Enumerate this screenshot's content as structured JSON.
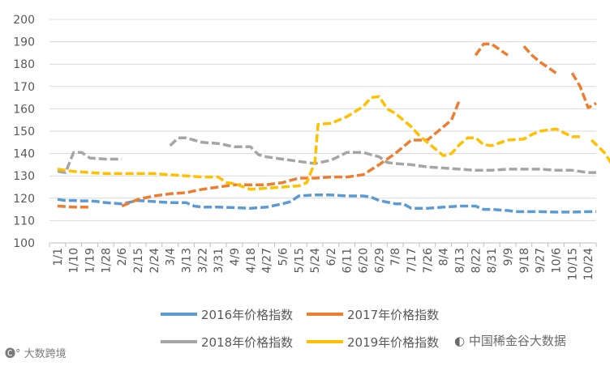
{
  "chart_data": {
    "type": "line",
    "title": "",
    "xlabel": "",
    "ylabel": "",
    "ylim": [
      100,
      200
    ],
    "yticks": [
      100,
      110,
      120,
      130,
      140,
      150,
      160,
      170,
      180,
      190,
      200
    ],
    "x_tick_labels": [
      "1/1",
      "1/10",
      "1/19",
      "1/28",
      "2/6",
      "2/15",
      "2/24",
      "3/4",
      "3/13",
      "3/22",
      "3/31",
      "4/9",
      "4/18",
      "4/27",
      "5/6",
      "5/15",
      "5/24",
      "6/2",
      "6/11",
      "6/20",
      "6/29",
      "7/8",
      "7/17",
      "7/26",
      "8/4",
      "8/13",
      "8/22",
      "8/31",
      "9/9",
      "9/18",
      "9/27",
      "10/6",
      "10/15",
      "10/24"
    ],
    "grid": "horizontal",
    "legend_position": "bottom",
    "line_style": "dashed",
    "series": [
      {
        "name": "2016年价格指数",
        "color": "#5B9BD5",
        "values": [
          [
            0,
            119.5
          ],
          [
            0.5,
            119.0
          ],
          [
            1,
            119.0
          ],
          [
            1.5,
            118.8
          ],
          [
            2,
            118.8
          ],
          [
            2.5,
            118.5
          ],
          [
            3,
            118.0
          ],
          [
            4,
            117.5
          ],
          [
            5,
            119.0
          ],
          [
            6,
            118.5
          ],
          [
            7,
            118.0
          ],
          [
            8,
            118.0
          ],
          [
            8.5,
            116.5
          ],
          [
            9,
            116.0
          ],
          [
            10,
            116.0
          ],
          [
            11,
            115.8
          ],
          [
            12,
            115.5
          ],
          [
            13,
            116.0
          ],
          [
            14,
            117.5
          ],
          [
            14.5,
            118.5
          ],
          [
            15,
            121.0
          ],
          [
            16,
            121.5
          ],
          [
            17,
            121.5
          ],
          [
            18,
            121.0
          ],
          [
            19,
            121.0
          ],
          [
            19.5,
            120.5
          ],
          [
            20,
            119.0
          ],
          [
            21,
            117.5
          ],
          [
            21.5,
            117.5
          ],
          [
            22,
            115.5
          ],
          [
            23,
            115.5
          ],
          [
            24,
            116.0
          ],
          [
            25,
            116.5
          ],
          [
            26,
            116.5
          ],
          [
            26.5,
            115.0
          ],
          [
            27,
            115.0
          ],
          [
            28,
            114.5
          ],
          [
            28.5,
            114.0
          ],
          [
            29,
            114.0
          ],
          [
            30,
            114.0
          ],
          [
            31,
            113.8
          ],
          [
            32,
            113.8
          ],
          [
            33,
            114.0
          ],
          [
            33.5,
            114.0
          ]
        ]
      },
      {
        "name": "2017年价格指数",
        "color": "#ED7D31",
        "values": [
          [
            0,
            116.5
          ],
          [
            1,
            116.0
          ],
          [
            2,
            116.0
          ],
          [
            3,
            null
          ],
          [
            4,
            116.5
          ],
          [
            5,
            119.5
          ],
          [
            6,
            121.0
          ],
          [
            7,
            122.0
          ],
          [
            8,
            122.5
          ],
          [
            9,
            124.0
          ],
          [
            10,
            125.0
          ],
          [
            11,
            126.0
          ],
          [
            12,
            126.0
          ],
          [
            13,
            126.0
          ],
          [
            14,
            127.0
          ],
          [
            15,
            129.0
          ],
          [
            16,
            129.0
          ],
          [
            17,
            129.5
          ],
          [
            18,
            129.5
          ],
          [
            19,
            130.5
          ],
          [
            20,
            135.0
          ],
          [
            21,
            140.0
          ],
          [
            21.5,
            143.0
          ],
          [
            22,
            146.0
          ],
          [
            23,
            146.0
          ],
          [
            24,
            152.0
          ],
          [
            24.5,
            155.0
          ],
          [
            25,
            164.0
          ],
          [
            25.5,
            null
          ],
          [
            26,
            184.0
          ],
          [
            26.5,
            189.0
          ],
          [
            27,
            189.0
          ],
          [
            28,
            184.0
          ],
          [
            28.5,
            null
          ],
          [
            29,
            188.0
          ],
          [
            29.5,
            184.0
          ],
          [
            30,
            181.0
          ],
          [
            31,
            176.0
          ],
          [
            31.5,
            null
          ],
          [
            32,
            176.0
          ],
          [
            32.5,
            170.0
          ],
          [
            33,
            160.5
          ],
          [
            33.5,
            162.5
          ]
        ]
      },
      {
        "name": "2018年价格指数",
        "color": "#A5A5A5",
        "values": [
          [
            0,
            132.0
          ],
          [
            0.5,
            131.5
          ],
          [
            1,
            140.5
          ],
          [
            1.5,
            140.5
          ],
          [
            2,
            138.0
          ],
          [
            3,
            137.5
          ],
          [
            4,
            137.5
          ],
          [
            5,
            null
          ],
          [
            6,
            137.5
          ],
          [
            6.5,
            null
          ],
          [
            7,
            143.5
          ],
          [
            7.5,
            147.0
          ],
          [
            8,
            147.0
          ],
          [
            9,
            145.0
          ],
          [
            10,
            144.5
          ],
          [
            11,
            143.0
          ],
          [
            12,
            143.0
          ],
          [
            12.5,
            139.5
          ],
          [
            13,
            138.5
          ],
          [
            14,
            137.5
          ],
          [
            15,
            136.5
          ],
          [
            16,
            135.5
          ],
          [
            17,
            137.0
          ],
          [
            18,
            140.5
          ],
          [
            19,
            140.5
          ],
          [
            20,
            138.5
          ],
          [
            20.5,
            136.0
          ],
          [
            21,
            135.5
          ],
          [
            22,
            135.0
          ],
          [
            23,
            134.0
          ],
          [
            24,
            133.5
          ],
          [
            25,
            133.0
          ],
          [
            26,
            132.5
          ],
          [
            27,
            132.5
          ],
          [
            28,
            133.0
          ],
          [
            29,
            133.0
          ],
          [
            30,
            133.0
          ],
          [
            31,
            132.5
          ],
          [
            32,
            132.5
          ],
          [
            33,
            131.5
          ],
          [
            33.5,
            131.5
          ]
        ]
      },
      {
        "name": "2019年价格指数",
        "color": "#FFC000",
        "values": [
          [
            0,
            133.0
          ],
          [
            1,
            132.0
          ],
          [
            2,
            131.5
          ],
          [
            3,
            131.0
          ],
          [
            4,
            131.0
          ],
          [
            5,
            131.0
          ],
          [
            6,
            131.0
          ],
          [
            7,
            130.5
          ],
          [
            8,
            130.0
          ],
          [
            9,
            129.5
          ],
          [
            10,
            129.5
          ],
          [
            10.5,
            127.0
          ],
          [
            11,
            126.5
          ],
          [
            12,
            124.0
          ],
          [
            13,
            124.5
          ],
          [
            14,
            125.0
          ],
          [
            15,
            125.5
          ],
          [
            15.5,
            127.0
          ],
          [
            16,
            136.0
          ],
          [
            16.2,
            153.0
          ],
          [
            17,
            153.5
          ],
          [
            18,
            156.5
          ],
          [
            19,
            161.0
          ],
          [
            19.5,
            165.0
          ],
          [
            20,
            165.5
          ],
          [
            20.5,
            160.0
          ],
          [
            21,
            158.0
          ],
          [
            22,
            152.0
          ],
          [
            22.5,
            148.0
          ],
          [
            23,
            145.0
          ],
          [
            24,
            139.0
          ],
          [
            24.5,
            140.0
          ],
          [
            25,
            144.0
          ],
          [
            25.5,
            147.0
          ],
          [
            26,
            147.0
          ],
          [
            26.5,
            144.0
          ],
          [
            27,
            143.5
          ],
          [
            28,
            146.0
          ],
          [
            29,
            146.5
          ],
          [
            29.5,
            148.5
          ],
          [
            30,
            150.0
          ],
          [
            30.5,
            150.5
          ],
          [
            31,
            151.0
          ],
          [
            32,
            147.5
          ],
          [
            32.5,
            147.5
          ],
          [
            33,
            null
          ],
          [
            33.2,
            146.0
          ],
          [
            33.5,
            144.0
          ],
          [
            34,
            140.5
          ],
          [
            34.5,
            135.0
          ]
        ]
      }
    ]
  },
  "watermarks": {
    "left": "大数跨境",
    "right": "中国稀金谷大数据"
  }
}
